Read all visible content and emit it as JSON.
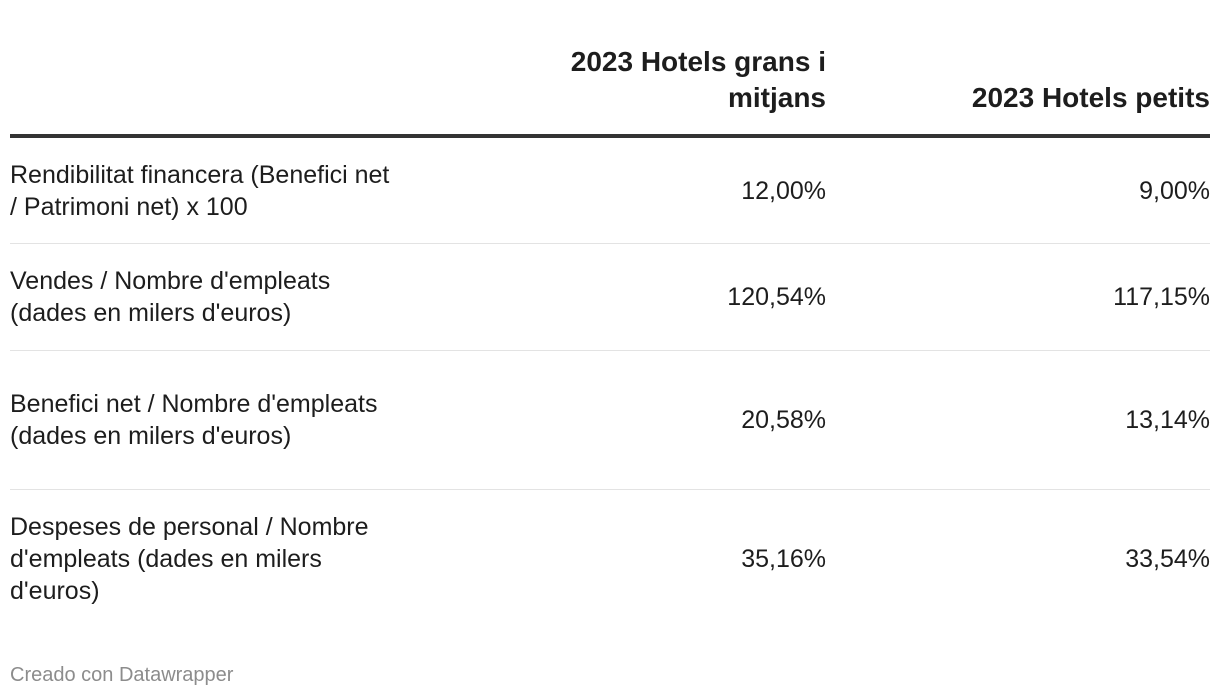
{
  "chart_data": {
    "type": "table",
    "columns": [
      "",
      "2023 Hotels grans i mitjans",
      "2023 Hotels petits"
    ],
    "rows": [
      {
        "label": "Rendibilitat financera (Benefici net / Patrimoni net) x 100",
        "values": [
          "12,00%",
          "9,00%"
        ]
      },
      {
        "label": "Vendes / Nombre d'empleats (dades en milers d'euros)",
        "values": [
          "120,54%",
          "117,15%"
        ]
      },
      {
        "label": "Benefici net / Nombre d'empleats (dades en milers d'euros)",
        "values": [
          "20,58%",
          "13,14%"
        ]
      },
      {
        "label": "Despeses de personal / Nombre d'empleats (dades en milers d'euros)",
        "values": [
          "35,16%",
          "33,54%"
        ]
      }
    ]
  },
  "footer": "Creado con Datawrapper"
}
